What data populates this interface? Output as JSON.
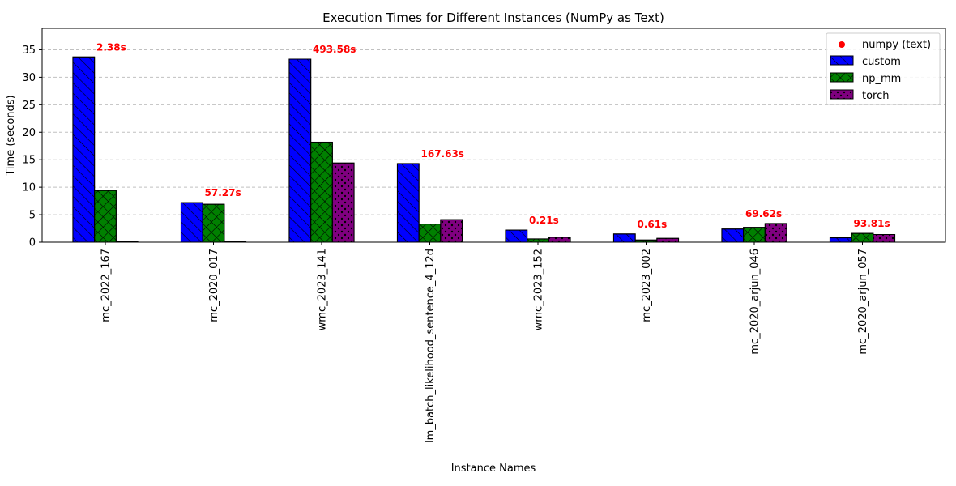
{
  "chart_data": {
    "type": "bar",
    "title": "Execution Times for Different Instances (NumPy as Text)",
    "xlabel": "Instance Names",
    "ylabel": "Time (seconds)",
    "ylim": [
      0,
      38.9
    ],
    "yticks": [
      0,
      5,
      10,
      15,
      20,
      25,
      30,
      35
    ],
    "grid": "y-dashed",
    "legend_position": "top-right",
    "categories": [
      "mc_2022_167",
      "mc_2020_017",
      "wmc_2023_141",
      "lm_batch_likelihood_sentence_4_12d",
      "wmc_2023_152",
      "mc_2023_002",
      "mc_2020_arjun_046",
      "mc_2020_arjun_057"
    ],
    "series": [
      {
        "name": "custom",
        "color": "#0000ff",
        "pattern": "diagonal-hatch",
        "values": [
          33.7,
          7.2,
          33.3,
          14.3,
          2.2,
          1.5,
          2.4,
          0.8
        ]
      },
      {
        "name": "np_mm",
        "color": "#008000",
        "pattern": "cross-hatch",
        "values": [
          9.4,
          6.9,
          18.2,
          3.3,
          0.6,
          0.4,
          2.7,
          1.6
        ]
      },
      {
        "name": "torch",
        "color": "#800080",
        "pattern": "dots",
        "values": [
          0.1,
          0.1,
          14.4,
          4.1,
          0.9,
          0.7,
          3.4,
          1.4
        ]
      }
    ],
    "numpy_text_series": {
      "name": "numpy (text)",
      "color": "#ff0000",
      "values": [
        2.38,
        57.27,
        493.58,
        167.63,
        0.21,
        0.61,
        69.62,
        93.81
      ],
      "labels": [
        "2.38s",
        "57.27s",
        "493.58s",
        "167.63s",
        "0.21s",
        "0.61s",
        "69.62s",
        "93.81s"
      ]
    }
  }
}
